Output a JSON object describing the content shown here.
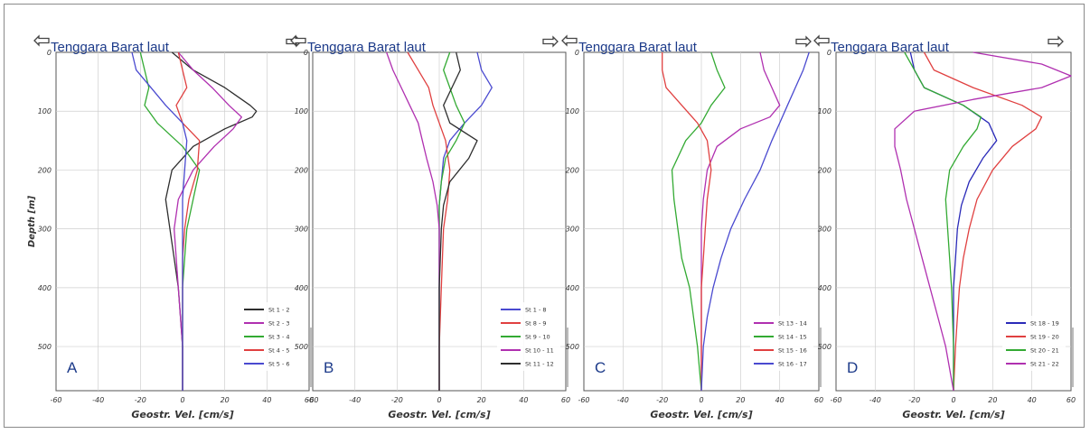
{
  "figure": {
    "colors": {
      "header_text": "#1d3b8a",
      "grid": "#cfcfcf",
      "axis": "#555555",
      "arrow": "#444444"
    },
    "icons": {
      "arrow_left": "left-arrow-icon",
      "arrow_right": "right-arrow-icon"
    }
  },
  "chart_data": [
    {
      "type": "line",
      "panel_label": "A",
      "header": "Tenggara Barat laut",
      "xlabel": "Geostr. Vel. [cm/s]",
      "ylabel": "Depth [m]",
      "xlim": [
        -60,
        60
      ],
      "ylim": [
        575,
        0
      ],
      "x_ticks": [
        -60,
        -40,
        -20,
        0,
        20,
        40,
        60
      ],
      "y_ticks": [
        0,
        100,
        200,
        300,
        400,
        500
      ],
      "grid": true,
      "legend_placement": "bottom-right",
      "series": [
        {
          "name": "St 1 - 2",
          "color": "#2e2e2e",
          "depth": [
            0,
            30,
            60,
            90,
            100,
            110,
            130,
            160,
            200,
            250,
            300,
            350,
            400,
            450,
            500,
            575
          ],
          "values": [
            -5,
            5,
            20,
            32,
            35,
            33,
            20,
            5,
            -5,
            -8,
            -6,
            -4,
            -2,
            -1,
            0,
            0
          ]
        },
        {
          "name": "St 2 - 3",
          "color": "#b030b0",
          "depth": [
            0,
            30,
            60,
            90,
            110,
            130,
            160,
            200,
            250,
            300,
            350,
            400,
            500,
            575
          ],
          "values": [
            -2,
            5,
            14,
            22,
            28,
            24,
            15,
            5,
            -2,
            -4,
            -3,
            -2,
            0,
            0
          ]
        },
        {
          "name": "St 3 - 4",
          "color": "#33aa33",
          "depth": [
            0,
            30,
            60,
            90,
            120,
            160,
            200,
            250,
            300,
            350,
            400,
            500,
            575
          ],
          "values": [
            -20,
            -18,
            -16,
            -18,
            -12,
            0,
            8,
            5,
            2,
            1,
            0,
            0,
            0
          ]
        },
        {
          "name": "St 4 - 5",
          "color": "#e04040",
          "depth": [
            0,
            30,
            60,
            90,
            120,
            150,
            200,
            250,
            300,
            350,
            400,
            500,
            575
          ],
          "values": [
            -2,
            0,
            2,
            -3,
            0,
            8,
            7,
            3,
            1,
            0,
            0,
            0,
            0
          ]
        },
        {
          "name": "St 5 - 6",
          "color": "#4a4ad0",
          "depth": [
            0,
            30,
            60,
            90,
            120,
            150,
            200,
            250,
            300,
            400,
            500,
            575
          ],
          "values": [
            -24,
            -22,
            -15,
            -8,
            0,
            2,
            1,
            0,
            0,
            0,
            0,
            0
          ]
        }
      ]
    },
    {
      "type": "line",
      "panel_label": "B",
      "header": "Tenggara Barat laut",
      "xlabel": "Geostr. Vel. [cm/s]",
      "ylabel": "",
      "xlim": [
        -60,
        60
      ],
      "ylim": [
        575,
        0
      ],
      "x_ticks": [
        -60,
        -40,
        -20,
        0,
        20,
        40,
        60
      ],
      "y_ticks": [
        0,
        100,
        200,
        300,
        400,
        500
      ],
      "grid": true,
      "legend_placement": "bottom-right",
      "series": [
        {
          "name": "St 1 - 8",
          "color": "#4a4ad0",
          "depth": [
            0,
            30,
            60,
            90,
            120,
            150,
            180,
            220,
            260,
            300,
            400,
            500,
            575
          ],
          "values": [
            18,
            20,
            25,
            20,
            12,
            5,
            2,
            1,
            0,
            0,
            0,
            0,
            0
          ]
        },
        {
          "name": "St 8 - 9",
          "color": "#e04040",
          "depth": [
            0,
            30,
            60,
            90,
            120,
            150,
            200,
            250,
            300,
            400,
            500,
            575
          ],
          "values": [
            -15,
            -10,
            -5,
            -3,
            0,
            3,
            5,
            4,
            2,
            1,
            0,
            0
          ]
        },
        {
          "name": "St 9 - 10",
          "color": "#33aa33",
          "depth": [
            0,
            30,
            60,
            90,
            120,
            150,
            180,
            220,
            260,
            300,
            400,
            500,
            575
          ],
          "values": [
            5,
            2,
            5,
            8,
            12,
            8,
            3,
            1,
            0,
            0,
            0,
            0,
            0
          ]
        },
        {
          "name": "St 10 - 11",
          "color": "#b030b0",
          "depth": [
            0,
            30,
            60,
            90,
            120,
            150,
            180,
            220,
            260,
            300,
            400,
            500,
            575
          ],
          "values": [
            -25,
            -22,
            -18,
            -14,
            -10,
            -8,
            -6,
            -3,
            -1,
            0,
            0,
            0,
            0
          ]
        },
        {
          "name": "St 11 - 12",
          "color": "#2e2e2e",
          "depth": [
            0,
            30,
            60,
            90,
            120,
            150,
            180,
            220,
            260,
            300,
            400,
            500,
            575
          ],
          "values": [
            8,
            10,
            6,
            2,
            5,
            18,
            14,
            5,
            2,
            1,
            0,
            0,
            0
          ]
        }
      ]
    },
    {
      "type": "line",
      "panel_label": "C",
      "header": "Tenggara Barat laut",
      "xlabel": "Geostr. Vel. [cm/s]",
      "ylabel": "",
      "xlim": [
        -60,
        60
      ],
      "ylim": [
        575,
        0
      ],
      "x_ticks": [
        -60,
        -40,
        -20,
        0,
        20,
        40,
        60
      ],
      "y_ticks": [
        0,
        100,
        200,
        300,
        400,
        500
      ],
      "grid": true,
      "legend_placement": "bottom-right",
      "series": [
        {
          "name": "St 13 - 14",
          "color": "#b030b0",
          "depth": [
            0,
            30,
            60,
            90,
            110,
            130,
            160,
            200,
            250,
            300,
            400,
            500,
            575
          ],
          "values": [
            30,
            32,
            36,
            40,
            35,
            20,
            8,
            3,
            1,
            0,
            0,
            0,
            0
          ]
        },
        {
          "name": "St 14 - 15",
          "color": "#33aa33",
          "depth": [
            0,
            30,
            60,
            90,
            120,
            150,
            200,
            250,
            300,
            350,
            400,
            500,
            575
          ],
          "values": [
            5,
            8,
            12,
            5,
            0,
            -8,
            -15,
            -14,
            -12,
            -10,
            -6,
            -2,
            0
          ]
        },
        {
          "name": "St 15 - 16",
          "color": "#e04040",
          "depth": [
            0,
            30,
            60,
            90,
            120,
            150,
            200,
            250,
            300,
            350,
            400,
            500,
            575
          ],
          "values": [
            -20,
            -20,
            -18,
            -10,
            -2,
            3,
            5,
            3,
            2,
            1,
            0,
            0,
            0
          ]
        },
        {
          "name": "St 16 - 17",
          "color": "#4a4ad0",
          "depth": [
            0,
            30,
            60,
            90,
            120,
            150,
            200,
            250,
            300,
            350,
            400,
            450,
            500,
            575
          ],
          "values": [
            55,
            52,
            48,
            44,
            40,
            36,
            30,
            22,
            15,
            10,
            6,
            3,
            1,
            0
          ]
        }
      ]
    },
    {
      "type": "line",
      "panel_label": "D",
      "header": "Tenggara Barat laut",
      "xlabel": "Geostr. Vel. [cm/s]",
      "ylabel": "",
      "xlim": [
        -60,
        60
      ],
      "ylim": [
        575,
        0
      ],
      "x_ticks": [
        -60,
        -40,
        -20,
        0,
        20,
        40,
        60
      ],
      "y_ticks": [
        0,
        100,
        200,
        300,
        400,
        500
      ],
      "grid": true,
      "legend_placement": "bottom-right",
      "series": [
        {
          "name": "St 18 - 19",
          "color": "#2a2ab8",
          "depth": [
            0,
            30,
            60,
            90,
            120,
            150,
            180,
            220,
            260,
            300,
            350,
            400,
            500,
            575
          ],
          "values": [
            -22,
            -20,
            -15,
            5,
            18,
            22,
            15,
            8,
            4,
            2,
            1,
            0,
            0,
            0
          ]
        },
        {
          "name": "St 19 - 20",
          "color": "#e04040",
          "depth": [
            0,
            30,
            60,
            90,
            110,
            130,
            160,
            200,
            250,
            300,
            350,
            400,
            450,
            500,
            575
          ],
          "values": [
            -15,
            -10,
            10,
            35,
            45,
            42,
            30,
            20,
            12,
            8,
            5,
            3,
            2,
            1,
            0
          ]
        },
        {
          "name": "St 20 - 21",
          "color": "#33aa33",
          "depth": [
            0,
            30,
            60,
            90,
            110,
            130,
            160,
            200,
            250,
            300,
            350,
            400,
            500,
            575
          ],
          "values": [
            -25,
            -20,
            -15,
            5,
            14,
            12,
            5,
            -2,
            -4,
            -3,
            -2,
            -1,
            0,
            0
          ]
        },
        {
          "name": "St 21 - 22",
          "color": "#b030b0",
          "depth": [
            0,
            20,
            40,
            60,
            80,
            100,
            130,
            160,
            200,
            250,
            300,
            350,
            400,
            450,
            500,
            575
          ],
          "values": [
            10,
            45,
            60,
            45,
            10,
            -20,
            -30,
            -30,
            -27,
            -24,
            -20,
            -16,
            -12,
            -8,
            -4,
            0
          ]
        }
      ]
    }
  ]
}
